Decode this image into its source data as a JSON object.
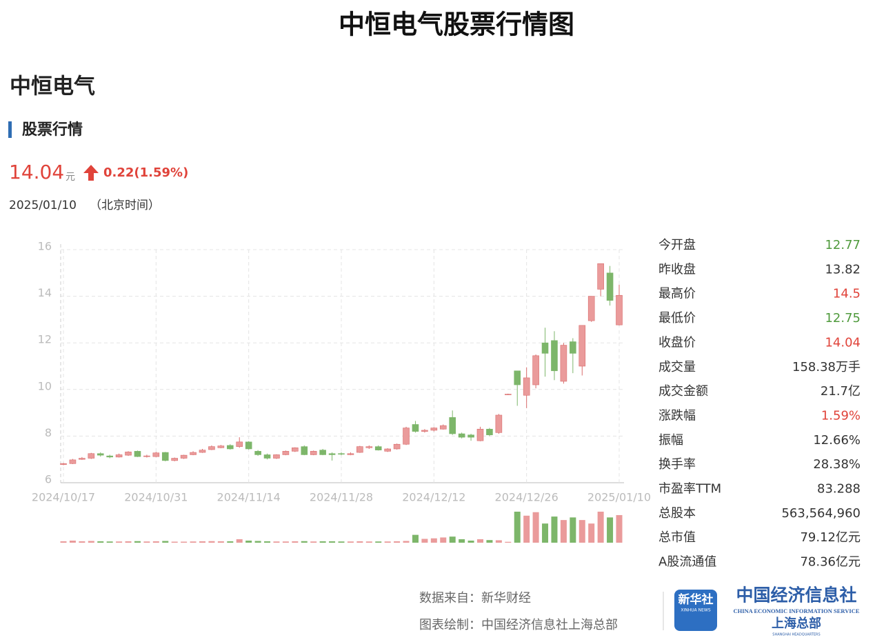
{
  "header": {
    "title": "中恒电气股票行情图"
  },
  "stock": {
    "name": "中恒电气",
    "section": "股票行情",
    "price": 14.04,
    "unit": "元",
    "change": "0.22(1.59%)",
    "date": "2025/01/10",
    "timezone": "（北京时间）"
  },
  "stats": [
    {
      "label": "今开盘",
      "value": "12.77",
      "color": "#4f9a3c"
    },
    {
      "label": "昨收盘",
      "value": "13.82",
      "color": "#333333"
    },
    {
      "label": "最高价",
      "value": "14.5",
      "color": "#e0433a"
    },
    {
      "label": "最低价",
      "value": "12.75",
      "color": "#4f9a3c"
    },
    {
      "label": "收盘价",
      "value": "14.04",
      "color": "#e0433a"
    },
    {
      "label": "成交量",
      "value": "158.38万手",
      "color": "#333333"
    },
    {
      "label": "成交金额",
      "value": "21.7亿",
      "color": "#333333"
    },
    {
      "label": "涨跌幅",
      "value": "1.59%",
      "color": "#e0433a"
    },
    {
      "label": "振幅",
      "value": "12.66%",
      "color": "#333333"
    },
    {
      "label": "换手率",
      "value": "28.38%",
      "color": "#333333"
    },
    {
      "label": "市盈率TTM",
      "value": "83.288",
      "color": "#333333"
    },
    {
      "label": "总股本",
      "value": "563,564,960",
      "color": "#333333"
    },
    {
      "label": "总市值",
      "value": "79.12亿元",
      "color": "#333333"
    },
    {
      "label": "A股流通值",
      "value": "78.36亿元",
      "color": "#333333"
    }
  ],
  "chart_data": {
    "type": "candlestick",
    "categories": [
      "2024/10/17",
      null,
      null,
      null,
      null,
      null,
      null,
      null,
      null,
      null,
      "2024/10/31",
      null,
      null,
      null,
      null,
      null,
      null,
      null,
      null,
      null,
      "2024/11/14",
      null,
      null,
      null,
      null,
      null,
      null,
      null,
      null,
      null,
      "2024/11/28",
      null,
      null,
      null,
      null,
      null,
      null,
      null,
      null,
      null,
      "2024/12/12",
      null,
      null,
      null,
      null,
      null,
      null,
      null,
      null,
      null,
      "2024/12/26",
      null,
      null,
      null,
      null,
      null,
      null,
      null,
      null,
      null,
      "2025/01/10"
    ],
    "open": [
      6.78,
      6.82,
      7.0,
      7.05,
      7.25,
      7.15,
      7.1,
      7.18,
      7.35,
      7.12,
      7.12,
      7.3,
      6.95,
      7.05,
      7.2,
      7.3,
      7.42,
      7.5,
      7.6,
      7.55,
      7.75,
      7.35,
      7.2,
      7.05,
      7.2,
      7.35,
      7.55,
      7.2,
      7.4,
      7.25,
      7.25,
      7.2,
      7.3,
      7.5,
      7.55,
      7.35,
      7.45,
      7.65,
      8.5,
      8.2,
      8.25,
      8.3,
      8.8,
      8.1,
      8.05,
      7.8,
      8.3,
      8.15,
      9.79,
      10.8,
      9.75,
      10.2,
      12.0,
      12.1,
      10.35,
      12.05,
      11.0,
      12.95,
      14.3,
      15.0,
      12.77
    ],
    "high": [
      6.85,
      7.02,
      7.1,
      7.28,
      7.3,
      7.2,
      7.25,
      7.35,
      7.38,
      7.2,
      7.32,
      7.32,
      7.08,
      7.2,
      7.35,
      7.45,
      7.6,
      7.62,
      7.65,
      7.95,
      7.78,
      7.4,
      7.25,
      7.22,
      7.38,
      7.52,
      7.6,
      7.38,
      7.45,
      7.3,
      7.3,
      7.3,
      7.58,
      7.6,
      7.6,
      7.48,
      7.68,
      8.4,
      8.65,
      8.3,
      8.38,
      8.5,
      9.1,
      8.15,
      8.1,
      8.4,
      8.35,
      8.95,
      9.82,
      10.8,
      10.95,
      11.5,
      12.65,
      12.5,
      12.0,
      12.2,
      12.75,
      14.0,
      15.4,
      15.3,
      14.5
    ],
    "low": [
      6.75,
      6.8,
      6.98,
      7.02,
      7.12,
      7.05,
      7.08,
      7.15,
      7.1,
      7.08,
      7.1,
      6.92,
      6.92,
      7.02,
      7.18,
      7.28,
      7.4,
      7.48,
      7.42,
      7.5,
      7.42,
      7.15,
      7.0,
      7.02,
      7.18,
      7.32,
      7.18,
      7.18,
      7.18,
      6.95,
      7.18,
      7.18,
      7.28,
      7.45,
      7.38,
      7.32,
      7.42,
      7.62,
      8.15,
      8.15,
      8.2,
      8.28,
      8.05,
      7.9,
      7.8,
      7.78,
      8.0,
      8.1,
      9.76,
      9.3,
      9.2,
      10.05,
      10.55,
      10.4,
      10.25,
      10.7,
      10.6,
      12.9,
      14.0,
      13.6,
      12.75
    ],
    "close": [
      6.82,
      6.98,
      7.05,
      7.25,
      7.18,
      7.1,
      7.2,
      7.32,
      7.12,
      7.15,
      7.28,
      6.95,
      7.05,
      7.18,
      7.3,
      7.4,
      7.55,
      7.58,
      7.45,
      7.75,
      7.45,
      7.2,
      7.05,
      7.2,
      7.35,
      7.5,
      7.2,
      7.35,
      7.2,
      7.2,
      7.22,
      7.25,
      7.55,
      7.55,
      7.4,
      7.45,
      7.65,
      8.35,
      8.2,
      8.25,
      8.35,
      8.45,
      8.1,
      7.95,
      7.95,
      8.3,
      8.05,
      8.9,
      9.8,
      10.2,
      10.5,
      11.45,
      11.55,
      10.8,
      11.9,
      11.55,
      12.75,
      14.0,
      15.4,
      13.82,
      14.04
    ],
    "volume": [
      8,
      12,
      8,
      10,
      8,
      7,
      7,
      8,
      9,
      7,
      8,
      10,
      6,
      6,
      7,
      8,
      9,
      8,
      8,
      20,
      12,
      10,
      8,
      7,
      7,
      8,
      9,
      7,
      8,
      8,
      7,
      7,
      8,
      7,
      7,
      7,
      8,
      10,
      45,
      22,
      25,
      30,
      35,
      20,
      12,
      20,
      15,
      14,
      5,
      178,
      155,
      175,
      110,
      150,
      130,
      145,
      130,
      110,
      178,
      145,
      158.38
    ],
    "up_color": "#ea9b9b",
    "up_border": "#d96b6b",
    "down_color": "#7db66a",
    "ylim": [
      6,
      16
    ],
    "yticks": [
      6,
      8,
      10,
      12,
      14,
      16
    ],
    "grid": true
  },
  "footer": {
    "source": "数据来自：新华财经",
    "maker": "图表绘制：中国经济信息社上海总部",
    "logo_cn": "新华社",
    "logo_en": "XINHUA NEWS",
    "org_cn": "中国经济信息社",
    "org_en": "CHINA ECONOMIC INFORMATION SERVICE",
    "branch": "上海总部",
    "branch_en": "SHANGHAI HEADQUARTERS"
  }
}
